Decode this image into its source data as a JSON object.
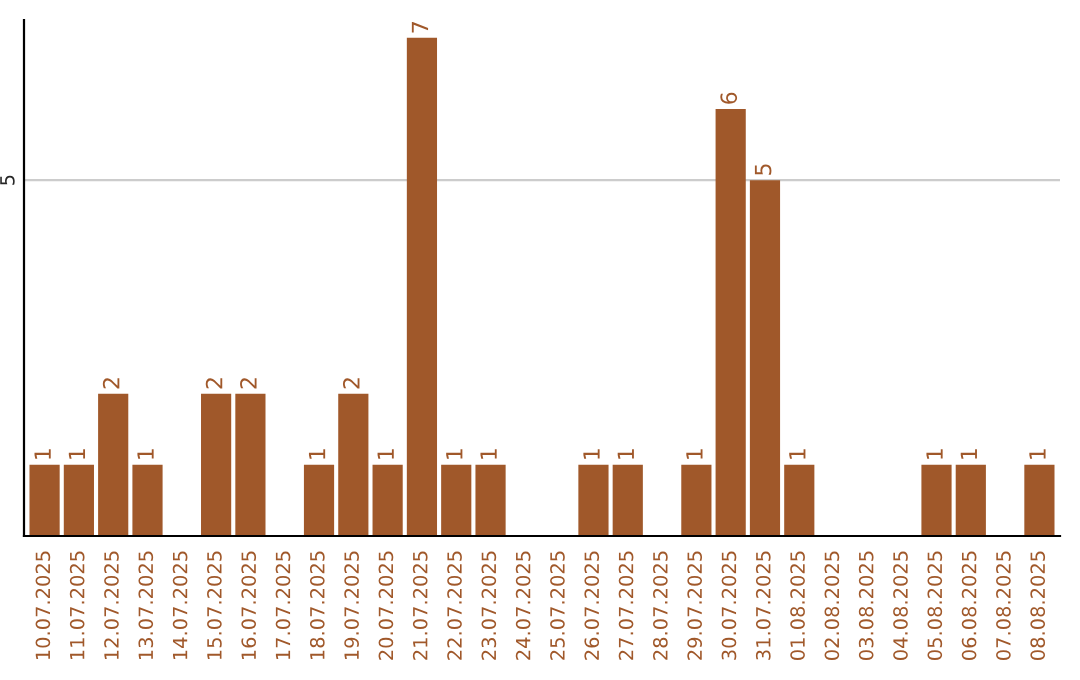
{
  "chart_data": {
    "type": "bar",
    "categories": [
      "10.07.2025",
      "11.07.2025",
      "12.07.2025",
      "13.07.2025",
      "14.07.2025",
      "15.07.2025",
      "16.07.2025",
      "17.07.2025",
      "18.07.2025",
      "19.07.2025",
      "20.07.2025",
      "21.07.2025",
      "22.07.2025",
      "23.07.2025",
      "24.07.2025",
      "25.07.2025",
      "26.07.2025",
      "27.07.2025",
      "28.07.2025",
      "29.07.2025",
      "30.07.2025",
      "31.07.2025",
      "01.08.2025",
      "02.08.2025",
      "03.08.2025",
      "04.08.2025",
      "05.08.2025",
      "06.08.2025",
      "07.08.2025",
      "08.08.2025"
    ],
    "values": [
      1,
      1,
      2,
      1,
      0,
      2,
      2,
      0,
      1,
      2,
      1,
      7,
      1,
      1,
      0,
      0,
      1,
      1,
      0,
      1,
      6,
      5,
      1,
      0,
      0,
      0,
      1,
      1,
      0,
      1
    ],
    "value_labels": [
      "1",
      "1",
      "2",
      "1",
      null,
      "2",
      "2",
      null,
      "1",
      "2",
      "1",
      "7",
      "1",
      "1",
      null,
      null,
      "1",
      "1",
      null,
      "1",
      "6",
      "5",
      "1",
      null,
      null,
      null,
      "1",
      "1",
      null,
      "1"
    ],
    "color": "#a0582a",
    "ylim": [
      0,
      7.25
    ],
    "yticks": [
      5
    ],
    "grid": "y"
  }
}
